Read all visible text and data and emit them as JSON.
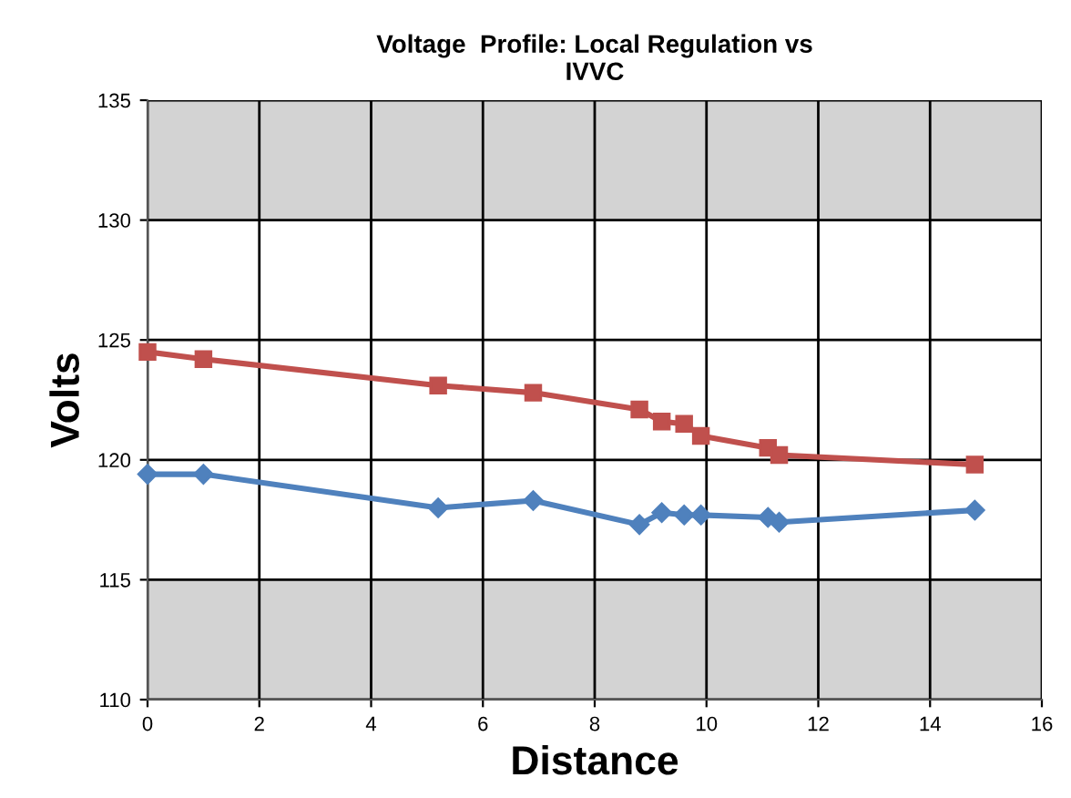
{
  "chart_data": {
    "type": "line",
    "title": "Voltage  Profile: Local Regulation vs\nIVVC",
    "xlabel": "Distance",
    "ylabel": "Volts",
    "x": [
      0,
      1.0,
      5.2,
      6.9,
      8.8,
      9.2,
      9.6,
      9.9,
      11.1,
      11.3,
      14.8
    ],
    "series": [
      {
        "color": "#c0504d",
        "marker": "square",
        "values": [
          124.5,
          124.2,
          123.1,
          122.8,
          122.1,
          121.6,
          121.5,
          121.0,
          120.5,
          120.2,
          119.8
        ]
      },
      {
        "color": "#4f81bd",
        "marker": "diamond",
        "values": [
          119.4,
          119.4,
          118.0,
          118.3,
          117.3,
          117.8,
          117.7,
          117.7,
          117.6,
          117.4,
          117.9
        ]
      }
    ],
    "xlim": [
      0,
      16
    ],
    "xticks": [
      0,
      2,
      4,
      6,
      8,
      10,
      12,
      14,
      16
    ],
    "ylim": [
      110,
      135
    ],
    "yticks": [
      110,
      115,
      120,
      125,
      130,
      135
    ],
    "bands": [
      {
        "axis": "y",
        "from": 130,
        "to": 135,
        "color": "#d3d3d3"
      },
      {
        "axis": "y",
        "from": 110,
        "to": 115,
        "color": "#d3d3d3"
      }
    ],
    "grid": true,
    "line_style": "solid"
  }
}
